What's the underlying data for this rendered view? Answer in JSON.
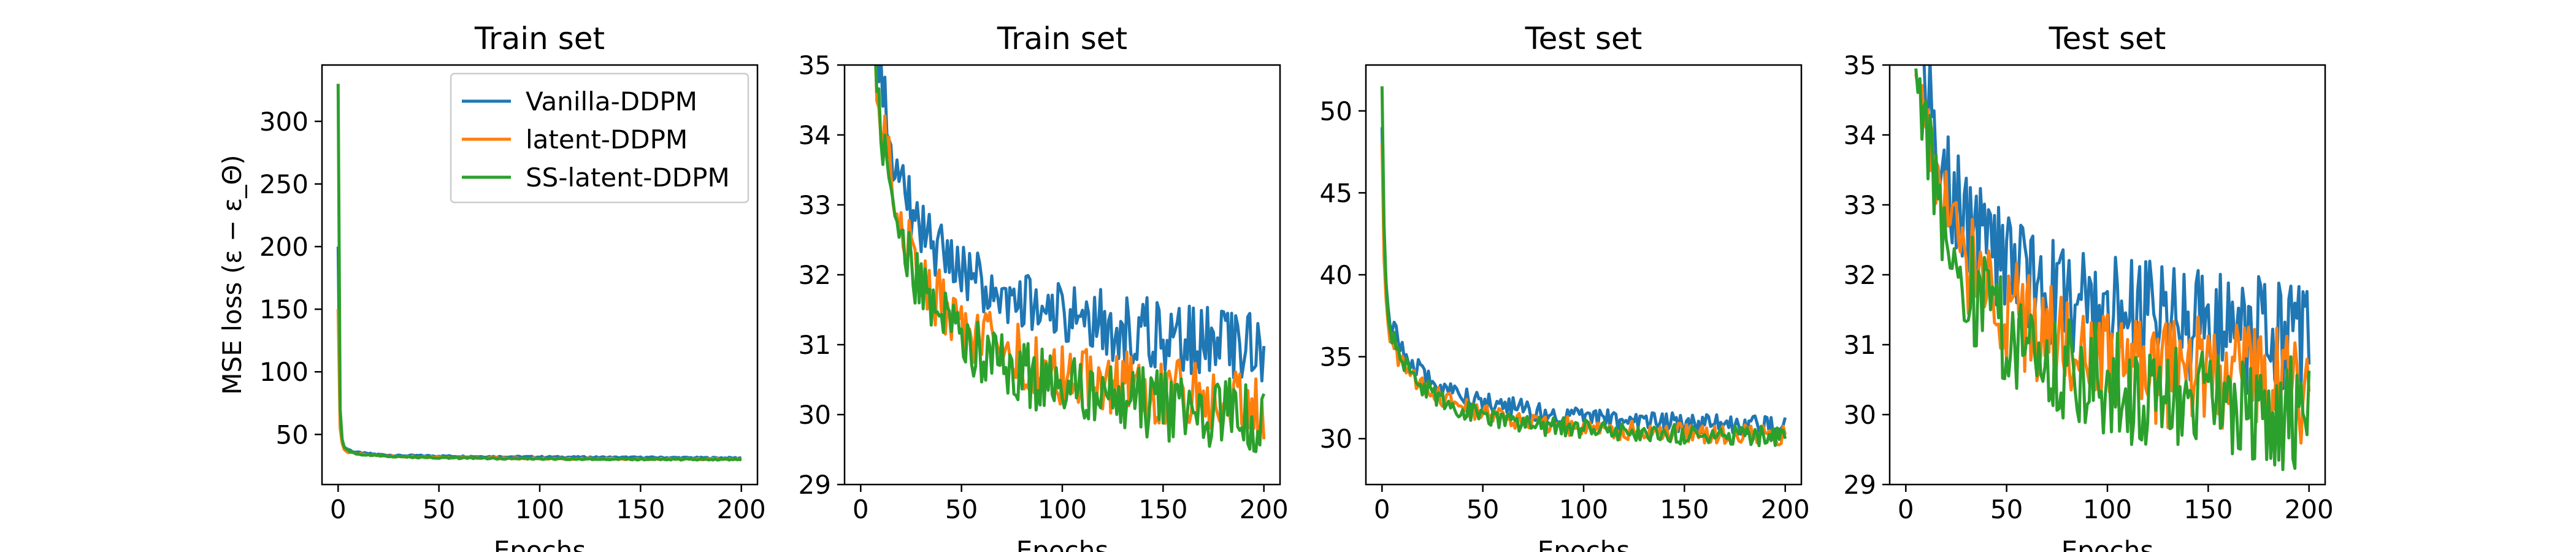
{
  "colors": {
    "vanilla": "#1f77b4",
    "latent": "#ff7f0e",
    "ss_latent": "#2ca02c"
  },
  "chart_data": [
    {
      "type": "line",
      "title": "Train set",
      "xlabel": "Epochs",
      "ylabel": "MSE loss (ε − ε_Θ)",
      "xlim": [
        -8,
        208
      ],
      "ylim": [
        10,
        345
      ],
      "xticks": [
        0,
        50,
        100,
        150,
        200
      ],
      "yticks": [
        50,
        100,
        150,
        200,
        250,
        300
      ],
      "legend": {
        "position": "top-right",
        "entries": [
          "Vanilla-DDPM",
          "latent-DDPM",
          "SS-latent-DDPM"
        ]
      },
      "series": [
        {
          "name": "Vanilla-DDPM",
          "x": [
            0,
            1,
            2,
            3,
            5,
            8,
            12,
            20,
            30,
            40,
            60,
            80,
            100,
            120,
            140,
            160,
            180,
            200
          ],
          "y": [
            200,
            60,
            45,
            40,
            38,
            36,
            35,
            34,
            33,
            33,
            32.5,
            32.2,
            32,
            31.8,
            31.6,
            31.5,
            31.3,
            31.2
          ]
        },
        {
          "name": "latent-DDPM",
          "x": [
            0,
            1,
            2,
            3,
            5,
            8,
            12,
            20,
            30,
            40,
            60,
            80,
            100,
            120,
            140,
            160,
            180,
            200
          ],
          "y": [
            150,
            55,
            43,
            38,
            36,
            35,
            34,
            33,
            32.5,
            32,
            31.5,
            31,
            30.8,
            30.6,
            30.5,
            30.4,
            30.3,
            30.2
          ]
        },
        {
          "name": "SS-latent-DDPM",
          "x": [
            0,
            1,
            2,
            3,
            5,
            8,
            12,
            20,
            30,
            40,
            60,
            80,
            100,
            120,
            140,
            160,
            180,
            200
          ],
          "y": [
            330,
            70,
            46,
            40,
            37,
            35,
            34,
            33,
            32.3,
            31.8,
            31.2,
            30.8,
            30.6,
            30.4,
            30.3,
            30.2,
            30.1,
            30.0
          ]
        }
      ]
    },
    {
      "type": "line",
      "title": "Train set",
      "xlabel": "Epochs",
      "ylabel": "",
      "xlim": [
        -8,
        208
      ],
      "ylim": [
        29,
        35
      ],
      "xticks": [
        0,
        50,
        100,
        150,
        200
      ],
      "yticks": [
        29,
        30,
        31,
        32,
        33,
        34,
        35
      ],
      "series": [
        {
          "name": "Vanilla-DDPM",
          "x": [
            5,
            10,
            15,
            20,
            25,
            30,
            40,
            50,
            60,
            70,
            80,
            90,
            100,
            110,
            120,
            130,
            140,
            150,
            160,
            170,
            180,
            190,
            200
          ],
          "y": [
            36,
            34.8,
            33.9,
            33.3,
            32.9,
            32.6,
            32.3,
            32.0,
            31.9,
            31.7,
            31.6,
            31.5,
            31.4,
            31.3,
            31.3,
            31.2,
            31.2,
            31.1,
            31.1,
            31.1,
            31.0,
            31.0,
            30.9
          ]
        },
        {
          "name": "latent-DDPM",
          "x": [
            5,
            10,
            15,
            20,
            25,
            30,
            40,
            50,
            60,
            70,
            80,
            90,
            100,
            110,
            120,
            130,
            140,
            150,
            160,
            170,
            180,
            190,
            200
          ],
          "y": [
            35.8,
            34.3,
            33.4,
            32.8,
            32.3,
            32.0,
            31.6,
            31.3,
            31.1,
            31.0,
            30.8,
            30.7,
            30.6,
            30.5,
            30.5,
            30.4,
            30.4,
            30.3,
            30.3,
            30.3,
            30.2,
            30.2,
            30.1
          ]
        },
        {
          "name": "SS-latent-DDPM",
          "x": [
            5,
            10,
            15,
            20,
            25,
            30,
            40,
            50,
            60,
            70,
            80,
            90,
            100,
            110,
            120,
            130,
            140,
            150,
            160,
            170,
            180,
            190,
            200
          ],
          "y": [
            35.6,
            34.0,
            33.2,
            32.6,
            32.1,
            31.8,
            31.4,
            31.1,
            30.9,
            30.8,
            30.6,
            30.5,
            30.4,
            30.3,
            30.3,
            30.2,
            30.2,
            30.1,
            30.1,
            30.1,
            30.0,
            30.0,
            30.0
          ]
        }
      ]
    },
    {
      "type": "line",
      "title": "Test set",
      "xlabel": "Epochs",
      "ylabel": "",
      "xlim": [
        -8,
        208
      ],
      "ylim": [
        27.2,
        52.8
      ],
      "xticks": [
        0,
        50,
        100,
        150,
        200
      ],
      "yticks": [
        30,
        35,
        40,
        45,
        50
      ],
      "series": [
        {
          "name": "Vanilla-DDPM",
          "x": [
            0,
            1,
            2,
            3,
            5,
            8,
            12,
            20,
            30,
            40,
            50,
            60,
            80,
            100,
            120,
            140,
            160,
            180,
            200
          ],
          "y": [
            49,
            42,
            39.5,
            38,
            37,
            36,
            35,
            34,
            33.2,
            32.7,
            32.3,
            32.0,
            31.6,
            31.3,
            31.1,
            31.0,
            30.9,
            30.8,
            30.8
          ]
        },
        {
          "name": "latent-DDPM",
          "x": [
            0,
            1,
            2,
            3,
            5,
            8,
            12,
            20,
            30,
            40,
            50,
            60,
            80,
            100,
            120,
            140,
            160,
            180,
            200
          ],
          "y": [
            48,
            41,
            38.5,
            37,
            36,
            35,
            34.2,
            33.2,
            32.4,
            31.9,
            31.5,
            31.2,
            30.9,
            30.7,
            30.5,
            30.4,
            30.3,
            30.3,
            30.2
          ]
        },
        {
          "name": "SS-latent-DDPM",
          "x": [
            0,
            1,
            2,
            3,
            5,
            8,
            12,
            20,
            30,
            40,
            50,
            60,
            80,
            100,
            120,
            140,
            160,
            180,
            200
          ],
          "y": [
            51.5,
            43,
            39.5,
            37.5,
            36.3,
            35.2,
            34.3,
            33.2,
            32.3,
            31.8,
            31.4,
            31.1,
            30.8,
            30.6,
            30.4,
            30.3,
            30.2,
            30.2,
            30.1
          ]
        }
      ]
    },
    {
      "type": "line",
      "title": "Test set",
      "xlabel": "Epochs",
      "ylabel": "",
      "xlim": [
        -8,
        208
      ],
      "ylim": [
        29,
        35
      ],
      "xticks": [
        0,
        50,
        100,
        150,
        200
      ],
      "yticks": [
        29,
        30,
        31,
        32,
        33,
        34,
        35
      ],
      "series": [
        {
          "name": "Vanilla-DDPM",
          "x": [
            5,
            10,
            15,
            20,
            30,
            40,
            50,
            60,
            70,
            80,
            90,
            100,
            110,
            120,
            130,
            140,
            150,
            160,
            170,
            180,
            190,
            200
          ],
          "y": [
            35.5,
            34.6,
            33.9,
            33.4,
            32.8,
            32.4,
            32.1,
            31.9,
            31.8,
            31.7,
            31.6,
            31.5,
            31.4,
            31.4,
            31.3,
            31.3,
            31.2,
            31.2,
            31.1,
            31.1,
            31.1,
            31.0
          ]
        },
        {
          "name": "latent-DDPM",
          "x": [
            5,
            10,
            15,
            20,
            30,
            40,
            50,
            60,
            70,
            80,
            90,
            100,
            110,
            120,
            130,
            140,
            150,
            160,
            170,
            180,
            190,
            200
          ],
          "y": [
            35.3,
            34.2,
            33.4,
            32.9,
            32.2,
            31.8,
            31.5,
            31.3,
            31.1,
            31.0,
            30.9,
            30.8,
            30.7,
            30.7,
            30.6,
            30.6,
            30.5,
            30.5,
            30.4,
            30.4,
            30.4,
            30.3
          ]
        },
        {
          "name": "SS-latent-DDPM",
          "x": [
            5,
            10,
            15,
            20,
            30,
            40,
            50,
            60,
            70,
            80,
            90,
            100,
            110,
            120,
            130,
            140,
            150,
            160,
            170,
            180,
            190,
            200
          ],
          "y": [
            35.2,
            34.0,
            33.2,
            32.6,
            31.9,
            31.5,
            31.2,
            31.0,
            30.8,
            30.7,
            30.6,
            30.5,
            30.4,
            30.4,
            30.3,
            30.3,
            30.2,
            30.2,
            30.2,
            30.1,
            30.1,
            30.1
          ]
        }
      ]
    }
  ]
}
